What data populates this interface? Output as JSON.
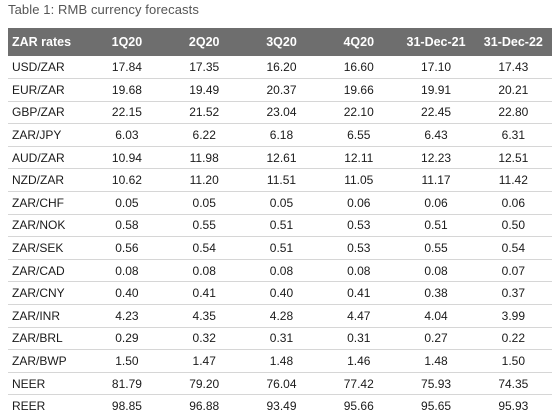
{
  "caption": "Table 1: RMB currency forecasts",
  "headers": [
    "ZAR rates",
    "1Q20",
    "2Q20",
    "3Q20",
    "4Q20",
    "31-Dec-21",
    "31-Dec-22"
  ],
  "rows": [
    [
      "USD/ZAR",
      "17.84",
      "17.35",
      "16.20",
      "16.60",
      "17.10",
      "17.43"
    ],
    [
      "EUR/ZAR",
      "19.68",
      "19.49",
      "20.37",
      "19.66",
      "19.91",
      "20.21"
    ],
    [
      "GBP/ZAR",
      "22.15",
      "21.52",
      "23.04",
      "22.10",
      "22.45",
      "22.80"
    ],
    [
      "ZAR/JPY",
      "6.03",
      "6.22",
      "6.18",
      "6.55",
      "6.43",
      "6.31"
    ],
    [
      "AUD/ZAR",
      "10.94",
      "11.98",
      "12.61",
      "12.11",
      "12.23",
      "12.51"
    ],
    [
      "NZD/ZAR",
      "10.62",
      "11.20",
      "11.51",
      "11.05",
      "11.17",
      "11.42"
    ],
    [
      "ZAR/CHF",
      "0.05",
      "0.05",
      "0.05",
      "0.06",
      "0.06",
      "0.06"
    ],
    [
      "ZAR/NOK",
      "0.58",
      "0.55",
      "0.51",
      "0.53",
      "0.51",
      "0.50"
    ],
    [
      "ZAR/SEK",
      "0.56",
      "0.54",
      "0.51",
      "0.53",
      "0.55",
      "0.54"
    ],
    [
      "ZAR/CAD",
      "0.08",
      "0.08",
      "0.08",
      "0.08",
      "0.08",
      "0.07"
    ],
    [
      "ZAR/CNY",
      "0.40",
      "0.41",
      "0.40",
      "0.41",
      "0.38",
      "0.37"
    ],
    [
      "ZAR/INR",
      "4.23",
      "4.35",
      "4.28",
      "4.47",
      "4.04",
      "3.99"
    ],
    [
      "ZAR/BRL",
      "0.29",
      "0.32",
      "0.31",
      "0.31",
      "0.27",
      "0.22"
    ],
    [
      "ZAR/BWP",
      "1.50",
      "1.47",
      "1.48",
      "1.46",
      "1.48",
      "1.50"
    ],
    [
      "NEER",
      "81.79",
      "79.20",
      "76.04",
      "77.42",
      "75.93",
      "74.35"
    ],
    [
      "REER",
      "98.85",
      "96.88",
      "93.49",
      "95.66",
      "95.65",
      "95.93"
    ]
  ]
}
